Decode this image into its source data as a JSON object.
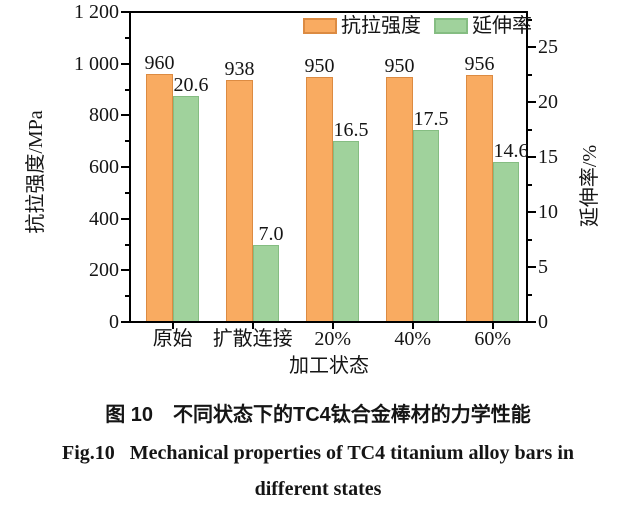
{
  "chart_data": {
    "type": "bar",
    "categories": [
      "原始",
      "扩散连接",
      "20%",
      "40%",
      "60%"
    ],
    "xlabel": "加工状态",
    "series": [
      {
        "name": "抗拉强度",
        "axis": "left",
        "values": [
          960,
          938,
          950,
          950,
          956
        ],
        "value_labels": [
          "960",
          "938",
          "950",
          "950",
          "956"
        ],
        "fill": "#F9AB61",
        "border": "#DC8B42"
      },
      {
        "name": "延伸率",
        "axis": "right",
        "values": [
          20.6,
          7.0,
          16.5,
          17.5,
          14.6
        ],
        "value_labels": [
          "20.6",
          "7.0",
          "16.5",
          "17.5",
          "14.6"
        ],
        "fill": "#A0D29C",
        "border": "#85BD82"
      }
    ],
    "left_axis": {
      "label": "抗拉强度/MPa",
      "lim": [
        0,
        1200
      ],
      "tick_labels": [
        "0",
        "200",
        "400",
        "600",
        "800",
        "1 000",
        "1 200"
      ],
      "minor_step": 100
    },
    "right_axis": {
      "label": "延伸率/%",
      "lim": [
        0,
        28.2
      ],
      "tick_labels": [
        "0",
        "5",
        "10",
        "15",
        "20",
        "25"
      ],
      "minor_step": 2.5
    },
    "legend": {
      "position": "top-right-inside",
      "items": [
        "抗拉强度",
        "延伸率"
      ]
    },
    "grid": false
  },
  "caption": {
    "cn": "图 10　不同状态下的TC4钛合金棒材的力学性能",
    "en_line1": "Fig.10   Mechanical properties of TC4 titanium alloy bars in",
    "en_line2": "different states"
  }
}
